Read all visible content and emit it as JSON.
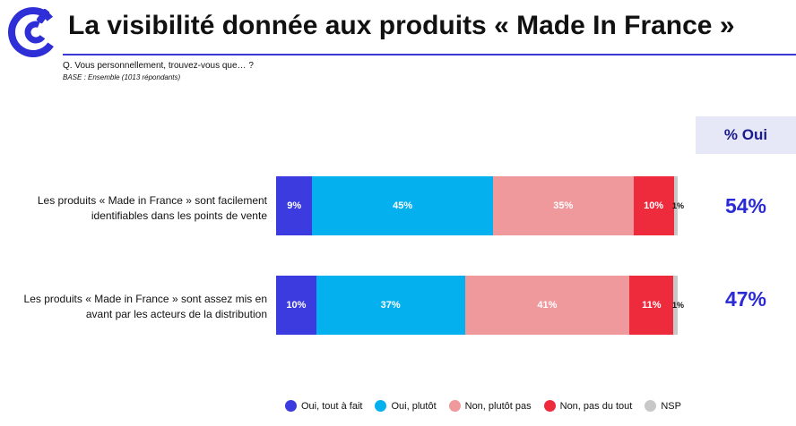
{
  "title": "La visibilité donnée aux produits « Made In France »",
  "question": "Q. Vous personnellement, trouvez-vous que… ?",
  "base": "BASE : Ensemble (1013 répondants)",
  "pct_header": "% Oui",
  "colors": {
    "oui_tout_a_fait": "#3b3be0",
    "oui_plutot": "#05b0ef",
    "non_plutot_pas": "#f0999c",
    "non_pas_du_tout": "#ee2b3d",
    "nsp": "#c8c8c8"
  },
  "chart_data": {
    "type": "bar",
    "orientation": "horizontal",
    "stacked": true,
    "categories": [
      "Les produits « Made in France » sont facilement identifiables dans les points de vente",
      "Les produits « Made in France » sont assez mis en avant par les acteurs de la distribution"
    ],
    "category_lines": [
      [
        "Les produits « Made in France » sont facilement",
        "identifiables dans les points de vente"
      ],
      [
        "Les produits « Made in France » sont assez mis en",
        "avant par les acteurs de la distribution"
      ]
    ],
    "series": [
      {
        "name": "Oui, tout à fait",
        "key": "oui_tout_a_fait",
        "values": [
          9,
          10
        ],
        "labels": [
          "9%",
          "10%"
        ]
      },
      {
        "name": "Oui, plutôt",
        "key": "oui_plutot",
        "values": [
          45,
          37
        ],
        "labels": [
          "45%",
          "37%"
        ]
      },
      {
        "name": "Non, plutôt pas",
        "key": "non_plutot_pas",
        "values": [
          35,
          41
        ],
        "labels": [
          "35%",
          "41%"
        ]
      },
      {
        "name": "Non, pas du tout",
        "key": "non_pas_du_tout",
        "values": [
          10,
          11
        ],
        "labels": [
          "10%",
          "11%"
        ]
      },
      {
        "name": "NSP",
        "key": "nsp",
        "values": [
          1,
          1
        ],
        "labels": [
          "1%",
          "1%"
        ]
      }
    ],
    "pct_oui": [
      "54%",
      "47%"
    ],
    "legend_placement": "bottom",
    "grid": false
  }
}
